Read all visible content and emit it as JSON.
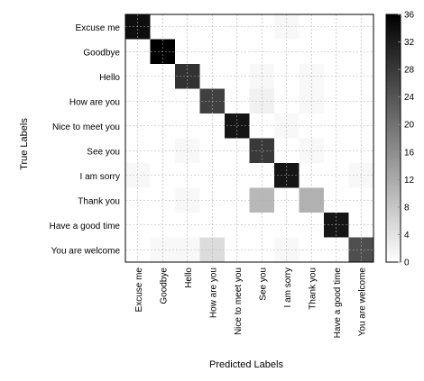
{
  "chart_data": {
    "type": "heatmap",
    "title": "",
    "xlabel": "Predicted Labels",
    "ylabel": "True Labels",
    "x_categories": [
      "Excuse me",
      "Goodbye",
      "Hello",
      "How are you",
      "Nice to meet you",
      "See you",
      "I am sorry",
      "Thank you",
      "Have a good time",
      "You are welcome"
    ],
    "y_categories": [
      "Excuse me",
      "Goodbye",
      "Hello",
      "How are you",
      "Nice to meet you",
      "See you",
      "I am sorry",
      "Thank you",
      "Have a good time",
      "You are welcome"
    ],
    "values": [
      [
        34,
        0,
        0,
        0,
        0,
        0,
        1,
        0,
        0,
        0
      ],
      [
        0,
        36,
        0,
        0,
        0,
        0,
        0,
        0,
        0,
        0
      ],
      [
        0,
        0,
        29,
        0,
        0,
        1,
        0,
        1,
        0,
        0
      ],
      [
        0,
        0,
        0,
        27,
        0,
        2,
        0,
        1,
        0,
        0
      ],
      [
        0,
        0,
        0,
        0,
        33,
        0,
        1,
        0,
        0,
        0
      ],
      [
        0,
        0,
        1,
        0,
        0,
        28,
        0,
        1,
        0,
        0
      ],
      [
        1,
        0,
        0,
        0,
        0,
        0,
        33,
        0,
        0,
        1
      ],
      [
        0,
        0,
        1,
        0,
        0,
        10,
        0,
        11,
        0,
        0
      ],
      [
        0,
        0,
        0,
        0,
        0,
        0,
        0,
        0,
        33,
        0
      ],
      [
        0,
        1,
        1,
        5,
        0,
        0,
        1,
        0,
        0,
        25
      ]
    ],
    "colorbar": {
      "min": 0,
      "max": 36,
      "ticks": [
        0,
        4,
        8,
        12,
        16,
        20,
        24,
        28,
        32,
        36
      ],
      "colormap": "white-to-black"
    },
    "grid": true
  }
}
